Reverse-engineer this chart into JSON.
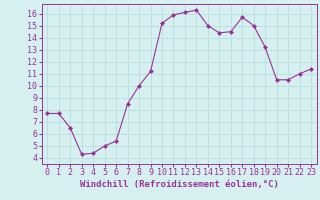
{
  "x": [
    0,
    1,
    2,
    3,
    4,
    5,
    6,
    7,
    8,
    9,
    10,
    11,
    12,
    13,
    14,
    15,
    16,
    17,
    18,
    19,
    20,
    21,
    22,
    23
  ],
  "y": [
    7.7,
    7.7,
    6.5,
    4.3,
    4.4,
    5.0,
    5.4,
    8.5,
    10.0,
    11.2,
    15.2,
    15.9,
    16.1,
    16.3,
    15.0,
    14.4,
    14.5,
    15.7,
    15.0,
    13.2,
    10.5,
    10.5,
    11.0,
    11.4
  ],
  "line_color": "#993399",
  "marker": "D",
  "marker_size": 2.0,
  "background_color": "#d6f0f0",
  "grid_color": "#b8dede",
  "xlabel": "Windchill (Refroidissement éolien,°C)",
  "xlabel_fontsize": 6.5,
  "tick_fontsize": 6,
  "ylim": [
    3.5,
    16.8
  ],
  "xlim": [
    -0.5,
    23.5
  ],
  "yticks": [
    4,
    5,
    6,
    7,
    8,
    9,
    10,
    11,
    12,
    13,
    14,
    15,
    16
  ],
  "xticks": [
    0,
    1,
    2,
    3,
    4,
    5,
    6,
    7,
    8,
    9,
    10,
    11,
    12,
    13,
    14,
    15,
    16,
    17,
    18,
    19,
    20,
    21,
    22,
    23
  ]
}
